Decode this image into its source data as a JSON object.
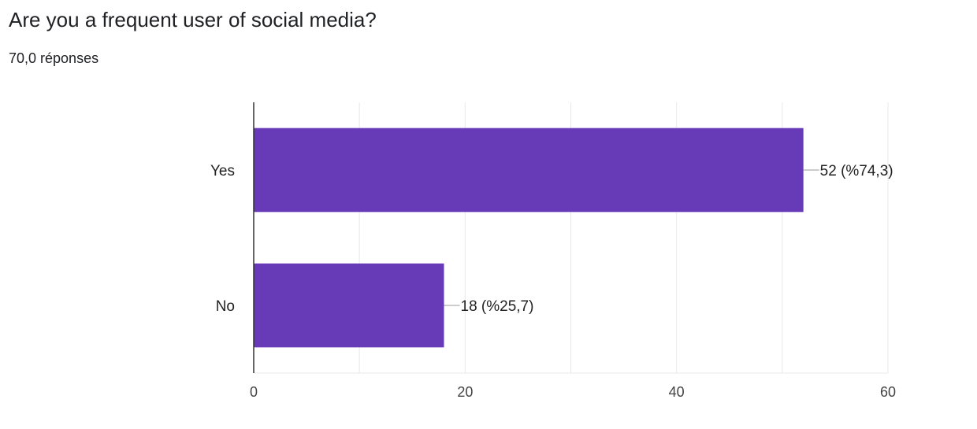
{
  "question": {
    "title": "Are you a frequent user of social media?",
    "response_count": "70,0 réponses"
  },
  "colors": {
    "bar": "#673ab7",
    "gridline": "#e8e8e8",
    "axis": "#333333",
    "leader_line": "#999999"
  },
  "chart_data": {
    "type": "bar",
    "orientation": "horizontal",
    "categories": [
      "Yes",
      "No"
    ],
    "values": [
      52,
      18
    ],
    "data_labels": [
      "52 (%74,3)",
      "18 (%25,7)"
    ],
    "xlim": [
      0,
      60
    ],
    "x_ticks": [
      0,
      20,
      40,
      60
    ],
    "x_tick_labels": [
      "0",
      "20",
      "40",
      "60"
    ],
    "grid": true,
    "legend": "none"
  }
}
